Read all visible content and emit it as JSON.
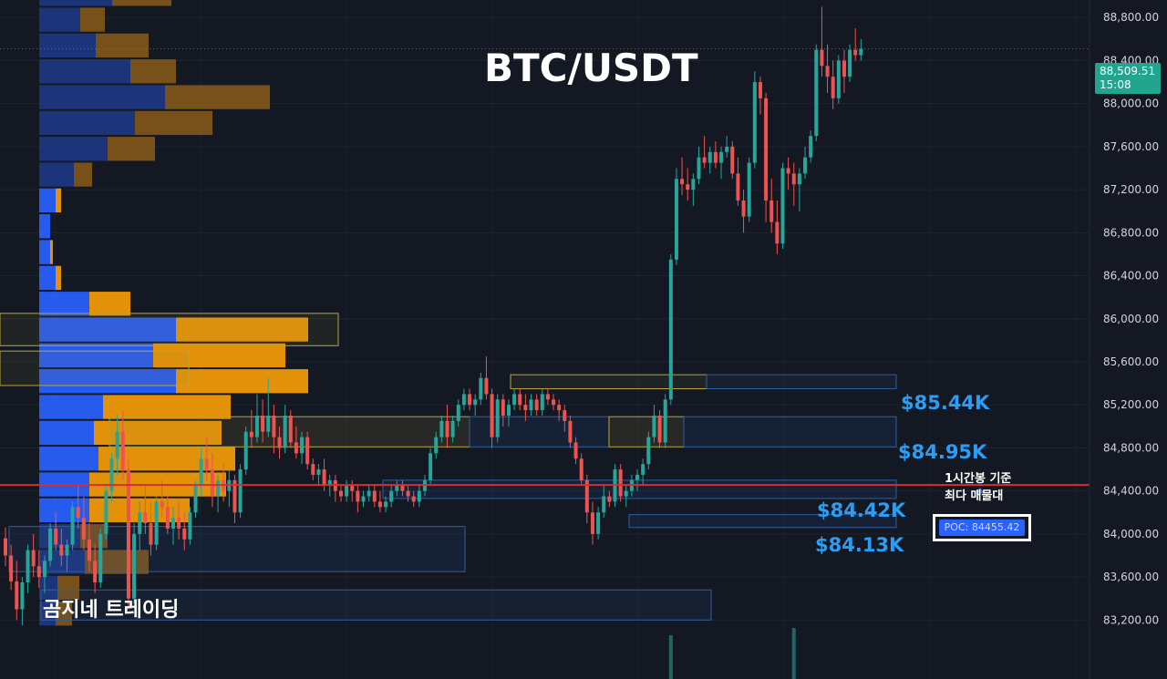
{
  "chart_data": {
    "type": "candlestick",
    "title": "BTC/USDT",
    "watermark": "곰지네 트레이딩",
    "price_axis": {
      "range": [
        83000,
        89300
      ],
      "ticks": [
        83200,
        83600,
        84000,
        84400,
        84800,
        85200,
        85600,
        86000,
        86400,
        86800,
        87200,
        87600,
        88000,
        88400,
        88800
      ],
      "tick_labels": [
        "83,200.00",
        "83,600.00",
        "84,000.00",
        "84,400.00",
        "84,800.00",
        "85,200.00",
        "85,600.00",
        "86,000.00",
        "86,400.00",
        "86,800.00",
        "87,200.00",
        "87,600.00",
        "88,000.00",
        "88,400.00",
        "88,800.00"
      ]
    },
    "last_price": {
      "value": 88509.51,
      "label": "88,509.51",
      "countdown": "15:08"
    },
    "levels": [
      {
        "label": "$85.44K",
        "low": 85375,
        "high": 85500
      },
      {
        "label": "$84.95K",
        "low": 84810,
        "high": 85090
      },
      {
        "label": "$84.42K",
        "low": 84330,
        "high": 84500
      },
      {
        "label": "$84.13K",
        "low": 84060,
        "high": 84180
      }
    ],
    "poc": {
      "value": 84455.42,
      "label": "POC: 84455.42",
      "note_line1": "1시간봉 기준",
      "note_line2": "최다 매물대"
    },
    "colors": {
      "background": "#141823",
      "up": "#26a69a",
      "down": "#ef5350",
      "axis_text": "#d1d4dc",
      "level_label": "#2a9df4",
      "poc_line": "#d32f2f",
      "vp_blue": "#2962ff",
      "vp_orange": "#f59c07"
    },
    "volume_profile": {
      "price_bottom": 83140,
      "bin_size": 240,
      "value_area_from_bin": 4,
      "value_area_to_bin": 16,
      "bins": [
        {
          "blue": 18,
          "orange": 18
        },
        {
          "blue": 20,
          "orange": 24
        },
        {
          "blue": 50,
          "orange": 70
        },
        {
          "blue": 45,
          "orange": 30
        },
        {
          "blue": 55,
          "orange": 110
        },
        {
          "blue": 55,
          "orange": 150
        },
        {
          "blue": 65,
          "orange": 150
        },
        {
          "blue": 60,
          "orange": 140
        },
        {
          "blue": 70,
          "orange": 140
        },
        {
          "blue": 150,
          "orange": 145
        },
        {
          "blue": 125,
          "orange": 145
        },
        {
          "blue": 150,
          "orange": 145
        },
        {
          "blue": 55,
          "orange": 45
        },
        {
          "blue": 18,
          "orange": 6
        },
        {
          "blue": 12,
          "orange": 3
        },
        {
          "blue": 12,
          "orange": 0
        },
        {
          "blue": 18,
          "orange": 6
        },
        {
          "blue": 38,
          "orange": 20
        },
        {
          "blue": 75,
          "orange": 52
        },
        {
          "blue": 105,
          "orange": 85
        },
        {
          "blue": 138,
          "orange": 115
        },
        {
          "blue": 100,
          "orange": 50
        },
        {
          "blue": 62,
          "orange": 58
        },
        {
          "blue": 45,
          "orange": 27
        },
        {
          "blue": 80,
          "orange": 65
        },
        {
          "blue": 38,
          "orange": 32
        },
        {
          "blue": 12,
          "orange": 12
        }
      ]
    },
    "candles": [
      [
        83960,
        84060,
        83700,
        83800
      ],
      [
        83800,
        83900,
        83480,
        83560
      ],
      [
        83560,
        83750,
        83200,
        83300
      ],
      [
        83300,
        83600,
        83150,
        83550
      ],
      [
        83550,
        83900,
        83450,
        83850
      ],
      [
        83850,
        84000,
        83600,
        83700
      ],
      [
        83700,
        83850,
        83500,
        83600
      ],
      [
        83600,
        83800,
        83450,
        83750
      ],
      [
        83750,
        84100,
        83700,
        84050
      ],
      [
        84050,
        84200,
        83850,
        83900
      ],
      [
        83900,
        84050,
        83700,
        83800
      ],
      [
        83800,
        83950,
        83650,
        83900
      ],
      [
        83900,
        84300,
        83850,
        84250
      ],
      [
        84250,
        84450,
        84050,
        84150
      ],
      [
        84150,
        84350,
        83850,
        83950
      ],
      [
        83950,
        84100,
        83650,
        83750
      ],
      [
        83750,
        83900,
        83450,
        83550
      ],
      [
        83550,
        84050,
        83500,
        84000
      ],
      [
        84000,
        84450,
        83950,
        84400
      ],
      [
        84400,
        84750,
        84300,
        84700
      ],
      [
        84700,
        85100,
        84550,
        84950
      ],
      [
        84950,
        85150,
        84500,
        84600
      ],
      [
        84600,
        84700,
        83300,
        83400
      ],
      [
        83400,
        84100,
        83350,
        84000
      ],
      [
        84000,
        84300,
        83850,
        84200
      ],
      [
        84200,
        84450,
        84000,
        84100
      ],
      [
        84100,
        84300,
        83800,
        83900
      ],
      [
        83900,
        84350,
        83850,
        84300
      ],
      [
        84300,
        84500,
        84150,
        84250
      ],
      [
        84250,
        84350,
        84000,
        84050
      ],
      [
        84050,
        84250,
        83900,
        84150
      ],
      [
        84150,
        84300,
        83950,
        84050
      ],
      [
        84050,
        84200,
        83850,
        83950
      ],
      [
        83950,
        84250,
        83900,
        84200
      ],
      [
        84200,
        84500,
        84150,
        84450
      ],
      [
        84450,
        84800,
        84350,
        84700
      ],
      [
        84700,
        84900,
        84500,
        84600
      ],
      [
        84600,
        84750,
        84250,
        84350
      ],
      [
        84350,
        84550,
        84200,
        84500
      ],
      [
        84500,
        84650,
        84300,
        84400
      ],
      [
        84400,
        84600,
        84250,
        84500
      ],
      [
        84500,
        84550,
        84100,
        84200
      ],
      [
        84200,
        84650,
        84150,
        84600
      ],
      [
        84600,
        85000,
        84550,
        84950
      ],
      [
        84950,
        85150,
        84800,
        84900
      ],
      [
        84900,
        85300,
        84850,
        85100
      ],
      [
        85100,
        85250,
        84850,
        84950
      ],
      [
        84950,
        85450,
        84900,
        85100
      ],
      [
        85100,
        85200,
        84750,
        84900
      ],
      [
        84900,
        85000,
        84700,
        84800
      ],
      [
        84800,
        85200,
        84750,
        85100
      ],
      [
        85100,
        85150,
        84800,
        84850
      ],
      [
        84850,
        85000,
        84700,
        84750
      ],
      [
        84750,
        84950,
        84650,
        84900
      ],
      [
        84900,
        84950,
        84600,
        84650
      ],
      [
        84650,
        84700,
        84500,
        84550
      ],
      [
        84550,
        84650,
        84450,
        84600
      ],
      [
        84600,
        84700,
        84400,
        84450
      ],
      [
        84450,
        84550,
        84350,
        84500
      ],
      [
        84500,
        84550,
        84300,
        84400
      ],
      [
        84400,
        84450,
        84300,
        84350
      ],
      [
        84350,
        84500,
        84300,
        84450
      ],
      [
        84450,
        84500,
        84300,
        84400
      ],
      [
        84400,
        84450,
        84200,
        84300
      ],
      [
        84300,
        84400,
        84250,
        84350
      ],
      [
        84350,
        84450,
        84300,
        84400
      ],
      [
        84400,
        84450,
        84250,
        84300
      ],
      [
        84300,
        84400,
        84200,
        84250
      ],
      [
        84250,
        84350,
        84200,
        84300
      ],
      [
        84300,
        84450,
        84250,
        84400
      ],
      [
        84400,
        84500,
        84350,
        84450
      ],
      [
        84450,
        84500,
        84350,
        84400
      ],
      [
        84400,
        84450,
        84300,
        84350
      ],
      [
        84350,
        84400,
        84250,
        84300
      ],
      [
        84300,
        84450,
        84250,
        84400
      ],
      [
        84400,
        84550,
        84350,
        84500
      ],
      [
        84500,
        84800,
        84450,
        84750
      ],
      [
        84750,
        84950,
        84700,
        84900
      ],
      [
        84900,
        85100,
        84850,
        85050
      ],
      [
        85050,
        85200,
        84800,
        84900
      ],
      [
        84900,
        85100,
        84850,
        85050
      ],
      [
        85050,
        85250,
        85000,
        85200
      ],
      [
        85200,
        85350,
        85150,
        85300
      ],
      [
        85300,
        85350,
        85150,
        85200
      ],
      [
        85200,
        85300,
        85100,
        85250
      ],
      [
        85250,
        85500,
        85200,
        85450
      ],
      [
        85450,
        85650,
        85250,
        85300
      ],
      [
        85300,
        85350,
        84800,
        84900
      ],
      [
        84900,
        85300,
        84850,
        85250
      ],
      [
        85250,
        85300,
        85000,
        85100
      ],
      [
        85100,
        85250,
        85000,
        85200
      ],
      [
        85200,
        85350,
        85150,
        85300
      ],
      [
        85300,
        85350,
        85150,
        85200
      ],
      [
        85200,
        85300,
        85050,
        85150
      ],
      [
        85150,
        85300,
        85100,
        85250
      ],
      [
        85250,
        85300,
        85100,
        85150
      ],
      [
        85150,
        85350,
        85100,
        85300
      ],
      [
        85300,
        85350,
        85200,
        85250
      ],
      [
        85250,
        85300,
        85150,
        85200
      ],
      [
        85200,
        85250,
        85050,
        85150
      ],
      [
        85150,
        85200,
        84950,
        85050
      ],
      [
        85050,
        85100,
        84800,
        84850
      ],
      [
        84850,
        84900,
        84650,
        84700
      ],
      [
        84700,
        84750,
        84450,
        84500
      ],
      [
        84500,
        84550,
        84100,
        84200
      ],
      [
        84200,
        84300,
        83900,
        84000
      ],
      [
        84000,
        84250,
        83950,
        84200
      ],
      [
        84200,
        84450,
        84150,
        84350
      ],
      [
        84350,
        84400,
        84250,
        84300
      ],
      [
        84300,
        84650,
        84250,
        84600
      ],
      [
        84600,
        84650,
        84300,
        84350
      ],
      [
        84350,
        84450,
        84250,
        84400
      ],
      [
        84400,
        84550,
        84350,
        84500
      ],
      [
        84500,
        84600,
        84400,
        84550
      ],
      [
        84550,
        84700,
        84450,
        84650
      ],
      [
        84650,
        84950,
        84600,
        84900
      ],
      [
        84900,
        85200,
        84850,
        85100
      ],
      [
        85100,
        85150,
        84800,
        84850
      ],
      [
        84850,
        85300,
        84800,
        85250
      ],
      [
        85250,
        86600,
        85200,
        86550
      ],
      [
        86550,
        87400,
        86500,
        87300
      ],
      [
        87300,
        87500,
        87150,
        87250
      ],
      [
        87250,
        87400,
        87100,
        87200
      ],
      [
        87200,
        87350,
        87050,
        87300
      ],
      [
        87300,
        87600,
        87250,
        87500
      ],
      [
        87500,
        87700,
        87400,
        87450
      ],
      [
        87450,
        87600,
        87350,
        87550
      ],
      [
        87550,
        87650,
        87400,
        87450
      ],
      [
        87450,
        87600,
        87300,
        87550
      ],
      [
        87550,
        87700,
        87500,
        87600
      ],
      [
        87600,
        87650,
        87300,
        87350
      ],
      [
        87350,
        87500,
        87050,
        87100
      ],
      [
        87100,
        87200,
        86800,
        86950
      ],
      [
        86950,
        87500,
        86900,
        87450
      ],
      [
        87450,
        88300,
        87400,
        88200
      ],
      [
        88200,
        88250,
        87900,
        88050
      ],
      [
        88050,
        88100,
        86900,
        87100
      ],
      [
        87100,
        87300,
        86800,
        86900
      ],
      [
        86900,
        87100,
        86600,
        86700
      ],
      [
        86700,
        87450,
        86650,
        87400
      ],
      [
        87400,
        87500,
        87200,
        87350
      ],
      [
        87350,
        87450,
        87050,
        87250
      ],
      [
        87250,
        87400,
        87000,
        87350
      ],
      [
        87350,
        87600,
        87300,
        87500
      ],
      [
        87500,
        87750,
        87450,
        87700
      ],
      [
        87700,
        88550,
        87650,
        88500
      ],
      [
        88500,
        88900,
        88250,
        88350
      ],
      [
        88350,
        88550,
        88100,
        88250
      ],
      [
        88250,
        88400,
        87950,
        88050
      ],
      [
        88050,
        88450,
        88000,
        88400
      ],
      [
        88400,
        88500,
        88100,
        88250
      ],
      [
        88250,
        88550,
        88200,
        88500
      ],
      [
        88500,
        88700,
        88400,
        88450
      ],
      [
        88450,
        88600,
        88400,
        88510
      ]
    ],
    "volume_spikes": [
      {
        "candle": 119,
        "bar_top_y": 697,
        "color": "#26a69a"
      },
      {
        "candle": 141,
        "bar_top_y": 689,
        "color": "#26a69a"
      }
    ]
  }
}
